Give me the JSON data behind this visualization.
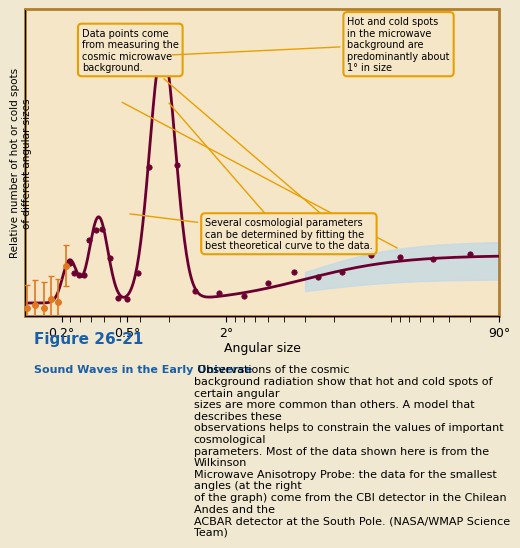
{
  "bg_color": "#f5e6c8",
  "plot_bg_color": "#f5e6c8",
  "curve_color": "#6b0030",
  "dot_color": "#6b0030",
  "orange_dot_color": "#e07820",
  "shading_color": "#c0d8e8",
  "annotation_box_color": "#f5e6c8",
  "annotation_border_color": "#e8a000",
  "ylabel": "Relative number of hot or cold spots\nof different angular sizes",
  "xlabel": "Angular size",
  "xtick_labels": [
    "90°",
    "2°",
    "0.5°",
    "0.2°"
  ],
  "figure_label": "Figure 26-21",
  "figure_label_color": "#1a5fa8",
  "caption_title": "Sound Waves in the Early Universe",
  "caption_title_color": "#1a5fa8",
  "caption_text": " Observations of the cosmic\nbackground radiation show that hot and cold spots of certain angular\nsizes are more common than others. A model that describes these\nobservations helps to constrain the values of important cosmological\nparameters. Most of the data shown here is from the Wilkinson\nMicrowave Anisotropy Probe: the data for the smallest angles (at the right\nof the graph) come from the CBI detector in the Chilean Andes and the\nACBAR detector at the South Pole. (NASA/WMAP Science Team)"
}
